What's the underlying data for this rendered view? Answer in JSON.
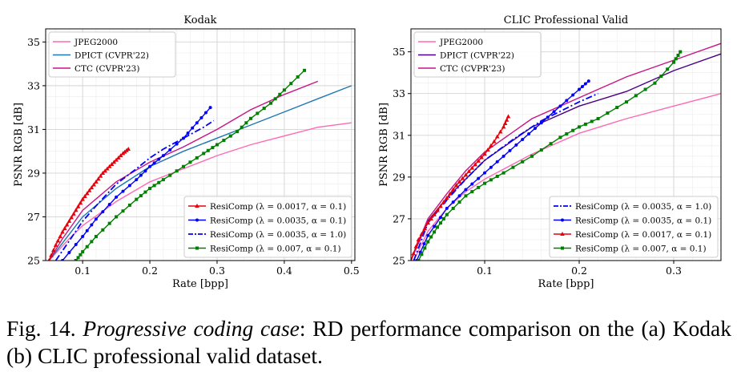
{
  "caption": {
    "label": "Fig. 14.",
    "italic": "Progressive coding case",
    "text": ": RD performance comparison on the (a) Kodak (b) CLIC professional valid dataset."
  },
  "chart_data": [
    {
      "type": "line",
      "title": "Kodak",
      "xlabel": "Rate [bpp]",
      "ylabel": "PSNR RGB [dB]",
      "xlim": [
        0.045,
        0.505
      ],
      "ylim": [
        25,
        35.6
      ],
      "xticks": [
        0.1,
        0.2,
        0.3,
        0.4,
        0.5
      ],
      "xtick_labels": [
        "0.1",
        "0.2",
        "0.3",
        "0.4",
        "0.5"
      ],
      "yticks": [
        25,
        27,
        29,
        31,
        33,
        35
      ],
      "ytick_labels": [
        "25",
        "27",
        "29",
        "31",
        "33",
        "35"
      ],
      "grid": true,
      "legends": [
        {
          "position": "top-left",
          "items": [
            "JPEG2000",
            "DPICT (CVPR'22)",
            "CTC (CVPR'23)"
          ]
        },
        {
          "position": "bottom-right",
          "items": [
            "ResiComp (λ = 0.0017, α = 0.1)",
            "ResiComp (λ = 0.0035, α = 0.1)",
            "ResiComp (λ = 0.0035, α = 1.0)",
            "ResiComp (λ = 0.007, α = 0.1)"
          ]
        }
      ],
      "series": [
        {
          "name": "JPEG2000",
          "color": "#ff69b4",
          "style": "solid",
          "marker": "none",
          "x": [
            0.05,
            0.08,
            0.1,
            0.15,
            0.2,
            0.25,
            0.3,
            0.35,
            0.4,
            0.45,
            0.5
          ],
          "y": [
            25.0,
            26.0,
            26.6,
            27.7,
            28.6,
            29.2,
            29.8,
            30.3,
            30.7,
            31.1,
            31.3
          ]
        },
        {
          "name": "DPICT (CVPR'22)",
          "color": "#1f77b4",
          "style": "solid",
          "marker": "none",
          "x": [
            0.05,
            0.07,
            0.1,
            0.15,
            0.2,
            0.25,
            0.3,
            0.35,
            0.4,
            0.45,
            0.5
          ],
          "y": [
            25.0,
            25.8,
            27.0,
            28.3,
            29.3,
            30.0,
            30.6,
            31.2,
            31.8,
            32.4,
            33.0
          ]
        },
        {
          "name": "CTC (CVPR'23)",
          "color": "#c71585",
          "style": "solid",
          "marker": "none",
          "x": [
            0.05,
            0.07,
            0.1,
            0.15,
            0.2,
            0.25,
            0.3,
            0.35,
            0.4,
            0.45
          ],
          "y": [
            25.0,
            26.0,
            27.3,
            28.6,
            29.5,
            30.2,
            31.0,
            31.9,
            32.6,
            33.2
          ]
        },
        {
          "name": "ResiComp (λ = 0.0017, α = 0.1)",
          "color": "#e8000b",
          "style": "solid",
          "marker": "triangle",
          "x": [
            0.05,
            0.06,
            0.07,
            0.08,
            0.09,
            0.1,
            0.11,
            0.12,
            0.13,
            0.14,
            0.15,
            0.16,
            0.168
          ],
          "y": [
            25.0,
            25.7,
            26.3,
            26.8,
            27.3,
            27.8,
            28.2,
            28.6,
            29.0,
            29.3,
            29.6,
            29.9,
            30.1
          ]
        },
        {
          "name": "ResiComp (λ = 0.0035, α = 0.1)",
          "color": "#0000ff",
          "style": "solid",
          "marker": "dot",
          "x": [
            0.07,
            0.1,
            0.12,
            0.15,
            0.18,
            0.2,
            0.22,
            0.25,
            0.27,
            0.29
          ],
          "y": [
            25.0,
            26.1,
            26.9,
            27.9,
            28.7,
            29.3,
            29.8,
            30.6,
            31.3,
            32.0
          ]
        },
        {
          "name": "ResiComp (λ = 0.0035, α = 1.0)",
          "color": "#0000ff",
          "style": "dashdot",
          "marker": "none",
          "x": [
            0.06,
            0.08,
            0.1,
            0.12,
            0.15,
            0.18,
            0.2,
            0.22,
            0.25,
            0.28,
            0.295
          ],
          "y": [
            25.0,
            25.9,
            26.8,
            27.5,
            28.5,
            29.2,
            29.7,
            30.1,
            30.6,
            31.1,
            31.4
          ]
        },
        {
          "name": "ResiComp (λ = 0.007, α = 0.1)",
          "color": "#008000",
          "style": "solid",
          "marker": "square",
          "x": [
            0.09,
            0.1,
            0.12,
            0.15,
            0.18,
            0.2,
            0.22,
            0.25,
            0.28,
            0.3,
            0.33,
            0.35,
            0.38,
            0.4,
            0.43
          ],
          "y": [
            25.0,
            25.4,
            26.1,
            27.0,
            27.8,
            28.3,
            28.7,
            29.3,
            29.9,
            30.3,
            30.9,
            31.5,
            32.2,
            32.8,
            33.7
          ]
        }
      ]
    },
    {
      "type": "line",
      "title": "CLIC Professional Valid",
      "xlabel": "Rate [bpp]",
      "ylabel": "PSNR RGB [dB]",
      "xlim": [
        0.022,
        0.35
      ],
      "ylim": [
        25,
        36.1
      ],
      "xticks": [
        0.1,
        0.2,
        0.3
      ],
      "xtick_labels": [
        "0.1",
        "0.2",
        "0.3"
      ],
      "yticks": [
        25,
        27,
        29,
        31,
        33,
        35
      ],
      "ytick_labels": [
        "25",
        "27",
        "29",
        "31",
        "33",
        "35"
      ],
      "grid": true,
      "legends": [
        {
          "position": "top-left",
          "items": [
            "JPEG2000",
            "DPICT (CVPR'22)",
            "CTC (CVPR'23)"
          ]
        },
        {
          "position": "bottom-right",
          "items": [
            "ResiComp (λ = 0.0035, α = 1.0)",
            "ResiComp (λ = 0.0035, α = 0.1)",
            "ResiComp (λ = 0.0017, α = 0.1)",
            "ResiComp (λ = 0.007, α = 0.1)"
          ]
        }
      ],
      "series": [
        {
          "name": "JPEG2000",
          "color": "#ff69b4",
          "style": "solid",
          "marker": "none",
          "x": [
            0.025,
            0.04,
            0.06,
            0.08,
            0.1,
            0.15,
            0.2,
            0.25,
            0.3,
            0.35
          ],
          "y": [
            25.0,
            26.4,
            27.5,
            28.3,
            28.9,
            30.1,
            31.1,
            31.8,
            32.4,
            33.0
          ]
        },
        {
          "name": "DPICT (CVPR'22)",
          "color": "#4b0082",
          "style": "solid",
          "marker": "none",
          "x": [
            0.022,
            0.04,
            0.06,
            0.08,
            0.1,
            0.15,
            0.2,
            0.25,
            0.3,
            0.35
          ],
          "y": [
            25.0,
            26.9,
            28.0,
            28.9,
            29.8,
            31.4,
            32.4,
            33.1,
            34.1,
            34.9
          ]
        },
        {
          "name": "CTC (CVPR'23)",
          "color": "#c71585",
          "style": "solid",
          "marker": "none",
          "x": [
            0.022,
            0.04,
            0.06,
            0.08,
            0.1,
            0.15,
            0.2,
            0.25,
            0.3,
            0.35
          ],
          "y": [
            25.0,
            27.0,
            28.2,
            29.3,
            30.2,
            31.8,
            32.8,
            33.8,
            34.6,
            35.4
          ]
        },
        {
          "name": "ResiComp (λ = 0.0035, α = 1.0)",
          "color": "#0000ff",
          "style": "dashdot",
          "marker": "none",
          "x": [
            0.025,
            0.04,
            0.06,
            0.08,
            0.1,
            0.13,
            0.16,
            0.2,
            0.22
          ],
          "y": [
            25.0,
            26.8,
            27.9,
            28.9,
            29.8,
            30.8,
            31.7,
            32.6,
            33.0
          ]
        },
        {
          "name": "ResiComp (λ = 0.0035, α = 0.1)",
          "color": "#0000ff",
          "style": "solid",
          "marker": "dot",
          "x": [
            0.028,
            0.04,
            0.06,
            0.08,
            0.1,
            0.12,
            0.14,
            0.16,
            0.18,
            0.2,
            0.21
          ],
          "y": [
            25.0,
            26.2,
            27.5,
            28.4,
            29.2,
            30.0,
            30.8,
            31.6,
            32.4,
            33.2,
            33.6
          ]
        },
        {
          "name": "ResiComp (λ = 0.0017, α = 0.1)",
          "color": "#e8000b",
          "style": "solid",
          "marker": "triangle",
          "x": [
            0.022,
            0.03,
            0.04,
            0.05,
            0.06,
            0.07,
            0.08,
            0.09,
            0.1,
            0.11,
            0.12,
            0.125
          ],
          "y": [
            25.0,
            26.0,
            26.8,
            27.4,
            28.0,
            28.6,
            29.1,
            29.6,
            30.1,
            30.7,
            31.4,
            31.9
          ]
        },
        {
          "name": "ResiComp (λ = 0.007, α = 0.1)",
          "color": "#008000",
          "style": "solid",
          "marker": "square",
          "x": [
            0.03,
            0.04,
            0.05,
            0.06,
            0.08,
            0.1,
            0.12,
            0.15,
            0.18,
            0.2,
            0.22,
            0.25,
            0.28,
            0.3,
            0.307
          ],
          "y": [
            25.0,
            25.9,
            26.6,
            27.2,
            28.1,
            28.7,
            29.2,
            30.0,
            30.9,
            31.4,
            31.8,
            32.6,
            33.5,
            34.5,
            35.0
          ]
        }
      ]
    }
  ]
}
